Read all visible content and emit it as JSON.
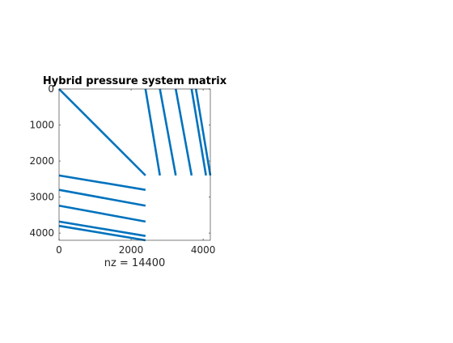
{
  "chart_data": {
    "type": "scatter",
    "subtype": "sparsity-pattern",
    "title": "Hybrid pressure system matrix",
    "xlabel": "nz = 14400",
    "ylabel": "",
    "xlim": [
      0,
      4200
    ],
    "ylim": [
      4200,
      0
    ],
    "y_axis_reversed": true,
    "xticks": [
      0,
      2000,
      4000
    ],
    "yticks": [
      0,
      1000,
      2000,
      3000,
      4000
    ],
    "grid": false,
    "marker_color": "#0072BD",
    "series": [
      {
        "x": [
          0,
          2400
        ],
        "y": [
          0,
          2400
        ]
      },
      {
        "x": [
          2400,
          2800
        ],
        "y": [
          0,
          2400
        ]
      },
      {
        "x": [
          2800,
          3240
        ],
        "y": [
          0,
          2400
        ]
      },
      {
        "x": [
          3240,
          3680
        ],
        "y": [
          0,
          2400
        ]
      },
      {
        "x": [
          3680,
          4080
        ],
        "y": [
          0,
          2400
        ]
      },
      {
        "x": [
          3800,
          4200
        ],
        "y": [
          0,
          2400
        ]
      },
      {
        "x": [
          0,
          2400
        ],
        "y": [
          2400,
          2800
        ]
      },
      {
        "x": [
          0,
          2400
        ],
        "y": [
          2800,
          3240
        ]
      },
      {
        "x": [
          0,
          2400
        ],
        "y": [
          3240,
          3680
        ]
      },
      {
        "x": [
          0,
          2400
        ],
        "y": [
          3680,
          4080
        ]
      },
      {
        "x": [
          0,
          2400
        ],
        "y": [
          3800,
          4200
        ]
      }
    ]
  }
}
